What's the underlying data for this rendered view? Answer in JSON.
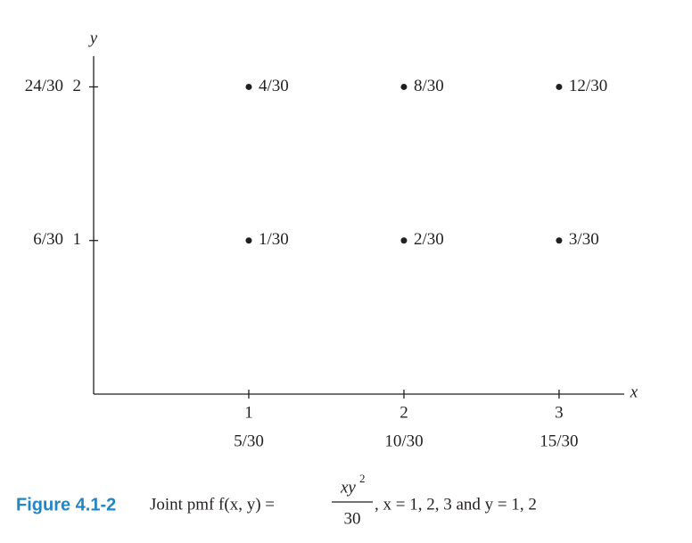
{
  "chart_data": {
    "type": "scatter",
    "x_label": "x",
    "y_label": "y",
    "xlim": [
      0,
      3.42
    ],
    "ylim": [
      0,
      2.2
    ],
    "xticks": [
      1,
      2,
      3
    ],
    "yticks": [
      1,
      2
    ],
    "series": [
      {
        "x": [
          1,
          2,
          3,
          1,
          2,
          3
        ],
        "y": [
          1,
          1,
          1,
          2,
          2,
          2
        ],
        "values": [
          0.0333,
          0.0667,
          0.1,
          0.1333,
          0.2667,
          0.4
        ],
        "value_labels": [
          "1/30",
          "2/30",
          "3/30",
          "4/30",
          "8/30",
          "12/30"
        ],
        "color": "#231f20"
      }
    ],
    "x_marginal": {
      "values": [
        0.1667,
        0.3333,
        0.5
      ],
      "value_labels": [
        "5/30",
        "10/30",
        "15/30"
      ]
    },
    "y_marginal": {
      "values": [
        0.2,
        0.8
      ],
      "value_labels": [
        "6/30",
        "24/30"
      ]
    },
    "caption": {
      "label": "Figure 4.1-2",
      "prefix": "Joint pmf f(x, y) =",
      "numerator": "xy",
      "exponent": "2",
      "denominator": "30",
      "suffix": ", x = 1, 2, 3 and y = 1, 2"
    }
  }
}
